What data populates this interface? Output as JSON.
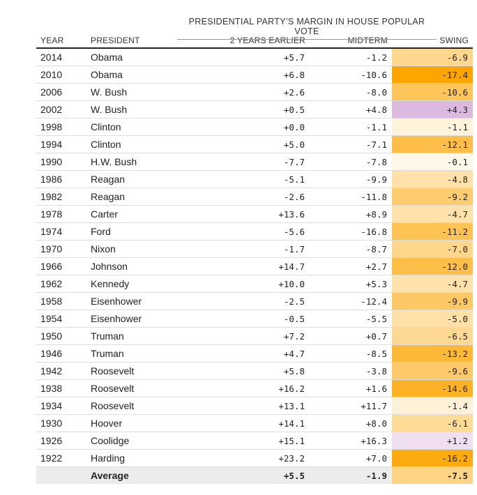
{
  "chart_data": {
    "type": "table",
    "title": "",
    "super_header": "PRESIDENTIAL PARTY’S MARGIN IN HOUSE POPULAR VOTE",
    "columns": [
      "YEAR",
      "PRESIDENT",
      "2 YEARS EARLIER",
      "MIDTERM",
      "SWING"
    ],
    "rows": [
      {
        "year": "2014",
        "president": "Obama",
        "earlier": "+5.7",
        "midterm": "-1.2",
        "swing": "-6.9"
      },
      {
        "year": "2010",
        "president": "Obama",
        "earlier": "+6.8",
        "midterm": "-10.6",
        "swing": "-17.4"
      },
      {
        "year": "2006",
        "president": "W. Bush",
        "earlier": "+2.6",
        "midterm": "-8.0",
        "swing": "-10.6"
      },
      {
        "year": "2002",
        "president": "W. Bush",
        "earlier": "+0.5",
        "midterm": "+4.8",
        "swing": "+4.3"
      },
      {
        "year": "1998",
        "president": "Clinton",
        "earlier": "+0.0",
        "midterm": "-1.1",
        "swing": "-1.1"
      },
      {
        "year": "1994",
        "president": "Clinton",
        "earlier": "+5.0",
        "midterm": "-7.1",
        "swing": "-12.1"
      },
      {
        "year": "1990",
        "president": "H.W. Bush",
        "earlier": "-7.7",
        "midterm": "-7.8",
        "swing": "-0.1"
      },
      {
        "year": "1986",
        "president": "Reagan",
        "earlier": "-5.1",
        "midterm": "-9.9",
        "swing": "-4.8"
      },
      {
        "year": "1982",
        "president": "Reagan",
        "earlier": "-2.6",
        "midterm": "-11.8",
        "swing": "-9.2"
      },
      {
        "year": "1978",
        "president": "Carter",
        "earlier": "+13.6",
        "midterm": "+8.9",
        "swing": "-4.7"
      },
      {
        "year": "1974",
        "president": "Ford",
        "earlier": "-5.6",
        "midterm": "-16.8",
        "swing": "-11.2"
      },
      {
        "year": "1970",
        "president": "Nixon",
        "earlier": "-1.7",
        "midterm": "-8.7",
        "swing": "-7.0"
      },
      {
        "year": "1966",
        "president": "Johnson",
        "earlier": "+14.7",
        "midterm": "+2.7",
        "swing": "-12.0"
      },
      {
        "year": "1962",
        "president": "Kennedy",
        "earlier": "+10.0",
        "midterm": "+5.3",
        "swing": "-4.7"
      },
      {
        "year": "1958",
        "president": "Eisenhower",
        "earlier": "-2.5",
        "midterm": "-12.4",
        "swing": "-9.9"
      },
      {
        "year": "1954",
        "president": "Eisenhower",
        "earlier": "-0.5",
        "midterm": "-5.5",
        "swing": "-5.0"
      },
      {
        "year": "1950",
        "president": "Truman",
        "earlier": "+7.2",
        "midterm": "+0.7",
        "swing": "-6.5"
      },
      {
        "year": "1946",
        "president": "Truman",
        "earlier": "+4.7",
        "midterm": "-8.5",
        "swing": "-13.2"
      },
      {
        "year": "1942",
        "president": "Roosevelt",
        "earlier": "+5.8",
        "midterm": "-3.8",
        "swing": "-9.6"
      },
      {
        "year": "1938",
        "president": "Roosevelt",
        "earlier": "+16.2",
        "midterm": "+1.6",
        "swing": "-14.6"
      },
      {
        "year": "1934",
        "president": "Roosevelt",
        "earlier": "+13.1",
        "midterm": "+11.7",
        "swing": "-1.4"
      },
      {
        "year": "1930",
        "president": "Hoover",
        "earlier": "+14.1",
        "midterm": "+8.0",
        "swing": "-6.1"
      },
      {
        "year": "1926",
        "president": "Coolidge",
        "earlier": "+15.1",
        "midterm": "+16.3",
        "swing": "+1.2"
      },
      {
        "year": "1922",
        "president": "Harding",
        "earlier": "+23.2",
        "midterm": "+7.0",
        "swing": "-16.2"
      }
    ],
    "average": {
      "year": "",
      "president": "Average",
      "earlier": "+5.5",
      "midterm": "-1.9",
      "swing": "-7.5"
    },
    "colors": {
      "negative_max": "#fea500",
      "negative_min": "#fff8ea",
      "positive_max": "#dcb9df",
      "positive_min": "#f6eef7"
    }
  }
}
